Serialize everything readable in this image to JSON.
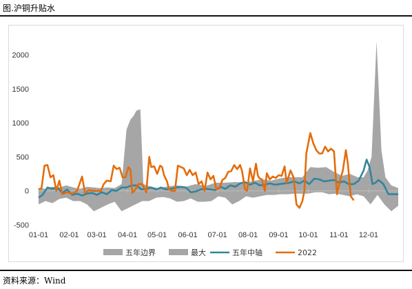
{
  "header": {
    "title": "图.沪铜升贴水"
  },
  "footer": {
    "source": "资料来源：Wind"
  },
  "chart_data": {
    "type": "area",
    "title": "",
    "xlabel": "",
    "ylabel": "",
    "ylim": [
      -500,
      2300
    ],
    "yticks": [
      "2000",
      "1500",
      "1000",
      "500",
      "0",
      "-500"
    ],
    "x_tick_labels": [
      "01-01",
      "02-01",
      "03-01",
      "04-01",
      "05-01",
      "06-01",
      "07-01",
      "08-01",
      "09-01",
      "10-01",
      "11-01",
      "12-01"
    ],
    "legend": [
      "五年边界",
      "最大",
      "五年中轴",
      "2022"
    ],
    "legend_position": "bottom",
    "colors": {
      "band": "#a6a6a6",
      "median": "#31859c",
      "y2022": "#e46c0a",
      "axis": "#bfbfbf"
    },
    "x_unit": "day-of-year",
    "series": [
      {
        "name": "最大",
        "points": [
          [
            1,
            40
          ],
          [
            8,
            30
          ],
          [
            15,
            60
          ],
          [
            22,
            50
          ],
          [
            29,
            80
          ],
          [
            36,
            50
          ],
          [
            43,
            30
          ],
          [
            50,
            60
          ],
          [
            57,
            50
          ],
          [
            64,
            40
          ],
          [
            71,
            50
          ],
          [
            78,
            40
          ],
          [
            85,
            100
          ],
          [
            90,
            900
          ],
          [
            94,
            1050
          ],
          [
            97,
            1100
          ],
          [
            100,
            1180
          ],
          [
            104,
            1200
          ],
          [
            107,
            100
          ],
          [
            115,
            60
          ],
          [
            122,
            40
          ],
          [
            130,
            60
          ],
          [
            140,
            80
          ],
          [
            150,
            60
          ],
          [
            160,
            100
          ],
          [
            170,
            70
          ],
          [
            180,
            120
          ],
          [
            190,
            120
          ],
          [
            200,
            130
          ],
          [
            210,
            120
          ],
          [
            220,
            150
          ],
          [
            228,
            170
          ],
          [
            236,
            150
          ],
          [
            244,
            180
          ],
          [
            252,
            200
          ],
          [
            260,
            200
          ],
          [
            268,
            200
          ],
          [
            276,
            350
          ],
          [
            284,
            340
          ],
          [
            292,
            350
          ],
          [
            300,
            280
          ],
          [
            308,
            220
          ],
          [
            316,
            250
          ],
          [
            324,
            200
          ],
          [
            330,
            200
          ],
          [
            334,
            300
          ],
          [
            338,
            500
          ],
          [
            341,
            1500
          ],
          [
            343,
            2200
          ],
          [
            345,
            1600
          ],
          [
            348,
            600
          ],
          [
            352,
            200
          ],
          [
            358,
            80
          ],
          [
            365,
            40
          ]
        ]
      },
      {
        "name": "五年边界",
        "points": [
          [
            1,
            -200
          ],
          [
            8,
            -150
          ],
          [
            15,
            -180
          ],
          [
            22,
            -120
          ],
          [
            29,
            -100
          ],
          [
            36,
            -150
          ],
          [
            43,
            -150
          ],
          [
            50,
            -200
          ],
          [
            57,
            -300
          ],
          [
            64,
            -250
          ],
          [
            71,
            -200
          ],
          [
            78,
            -160
          ],
          [
            85,
            -300
          ],
          [
            92,
            -250
          ],
          [
            99,
            -200
          ],
          [
            106,
            -150
          ],
          [
            113,
            -150
          ],
          [
            120,
            -100
          ],
          [
            127,
            -90
          ],
          [
            134,
            -110
          ],
          [
            141,
            -160
          ],
          [
            148,
            -150
          ],
          [
            155,
            -110
          ],
          [
            162,
            -160
          ],
          [
            169,
            -160
          ],
          [
            176,
            -150
          ],
          [
            183,
            -80
          ],
          [
            190,
            -100
          ],
          [
            197,
            -200
          ],
          [
            204,
            -150
          ],
          [
            211,
            -80
          ],
          [
            218,
            -100
          ],
          [
            225,
            -80
          ],
          [
            232,
            -60
          ],
          [
            239,
            -60
          ],
          [
            246,
            -50
          ],
          [
            253,
            -50
          ],
          [
            260,
            -40
          ],
          [
            267,
            -40
          ],
          [
            274,
            -40
          ],
          [
            281,
            -20
          ],
          [
            288,
            -20
          ],
          [
            295,
            -50
          ],
          [
            302,
            -40
          ],
          [
            309,
            -60
          ],
          [
            316,
            -80
          ],
          [
            323,
            -50
          ],
          [
            330,
            -80
          ],
          [
            337,
            -200
          ],
          [
            344,
            -60
          ],
          [
            351,
            -200
          ],
          [
            358,
            -300
          ],
          [
            365,
            -220
          ]
        ]
      },
      {
        "name": "五年中轴",
        "points": [
          [
            1,
            -100
          ],
          [
            5,
            -60
          ],
          [
            10,
            50
          ],
          [
            15,
            30
          ],
          [
            20,
            50
          ],
          [
            25,
            -30
          ],
          [
            30,
            20
          ],
          [
            35,
            -60
          ],
          [
            40,
            -40
          ],
          [
            45,
            -70
          ],
          [
            50,
            -40
          ],
          [
            55,
            -30
          ],
          [
            60,
            -60
          ],
          [
            65,
            -20
          ],
          [
            70,
            -50
          ],
          [
            75,
            10
          ],
          [
            80,
            0
          ],
          [
            85,
            50
          ],
          [
            90,
            50
          ],
          [
            95,
            80
          ],
          [
            100,
            80
          ],
          [
            105,
            20
          ],
          [
            110,
            30
          ],
          [
            115,
            50
          ],
          [
            120,
            20
          ],
          [
            125,
            50
          ],
          [
            130,
            20
          ],
          [
            135,
            30
          ],
          [
            140,
            50
          ],
          [
            145,
            60
          ],
          [
            150,
            50
          ],
          [
            155,
            -20
          ],
          [
            160,
            -10
          ],
          [
            165,
            20
          ],
          [
            170,
            30
          ],
          [
            175,
            20
          ],
          [
            180,
            10
          ],
          [
            185,
            60
          ],
          [
            190,
            30
          ],
          [
            195,
            80
          ],
          [
            200,
            60
          ],
          [
            205,
            110
          ],
          [
            210,
            130
          ],
          [
            215,
            90
          ],
          [
            220,
            120
          ],
          [
            225,
            80
          ],
          [
            230,
            90
          ],
          [
            235,
            110
          ],
          [
            240,
            90
          ],
          [
            245,
            100
          ],
          [
            250,
            110
          ],
          [
            255,
            120
          ],
          [
            260,
            140
          ],
          [
            265,
            110
          ],
          [
            270,
            150
          ],
          [
            275,
            100
          ],
          [
            280,
            180
          ],
          [
            285,
            170
          ],
          [
            290,
            140
          ],
          [
            295,
            150
          ],
          [
            300,
            160
          ],
          [
            305,
            120
          ],
          [
            310,
            140
          ],
          [
            315,
            100
          ],
          [
            320,
            100
          ],
          [
            325,
            150
          ],
          [
            330,
            300
          ],
          [
            333,
            460
          ],
          [
            336,
            350
          ],
          [
            339,
            100
          ],
          [
            342,
            120
          ],
          [
            345,
            160
          ],
          [
            350,
            100
          ],
          [
            355,
            -50
          ],
          [
            360,
            -50
          ],
          [
            365,
            -50
          ]
        ]
      },
      {
        "name": "2022",
        "points": [
          [
            1,
            20
          ],
          [
            4,
            40
          ],
          [
            7,
            370
          ],
          [
            10,
            380
          ],
          [
            13,
            200
          ],
          [
            16,
            230
          ],
          [
            19,
            0
          ],
          [
            22,
            150
          ],
          [
            25,
            -50
          ],
          [
            30,
            -20
          ],
          [
            35,
            -40
          ],
          [
            40,
            0
          ],
          [
            45,
            210
          ],
          [
            48,
            -30
          ],
          [
            52,
            10
          ],
          [
            56,
            0
          ],
          [
            60,
            0
          ],
          [
            64,
            0
          ],
          [
            67,
            100
          ],
          [
            70,
            150
          ],
          [
            74,
            140
          ],
          [
            77,
            370
          ],
          [
            80,
            320
          ],
          [
            83,
            340
          ],
          [
            86,
            200
          ],
          [
            89,
            200
          ],
          [
            92,
            350
          ],
          [
            94,
            310
          ],
          [
            96,
            -30
          ],
          [
            99,
            20
          ],
          [
            102,
            100
          ],
          [
            106,
            100
          ],
          [
            110,
            -20
          ],
          [
            113,
            500
          ],
          [
            115,
            350
          ],
          [
            118,
            360
          ],
          [
            121,
            250
          ],
          [
            124,
            370
          ],
          [
            126,
            350
          ],
          [
            128,
            230
          ],
          [
            131,
            140
          ],
          [
            133,
            20
          ],
          [
            136,
            0
          ],
          [
            139,
            0
          ],
          [
            142,
            370
          ],
          [
            145,
            350
          ],
          [
            148,
            330
          ],
          [
            151,
            230
          ],
          [
            154,
            310
          ],
          [
            157,
            230
          ],
          [
            160,
            270
          ],
          [
            163,
            100
          ],
          [
            166,
            140
          ],
          [
            169,
            0
          ],
          [
            172,
            270
          ],
          [
            175,
            170
          ],
          [
            178,
            220
          ],
          [
            181,
            20
          ],
          [
            184,
            40
          ],
          [
            187,
            160
          ],
          [
            190,
            190
          ],
          [
            193,
            280
          ],
          [
            196,
            290
          ],
          [
            199,
            380
          ],
          [
            202,
            320
          ],
          [
            205,
            380
          ],
          [
            207,
            290
          ],
          [
            210,
            20
          ],
          [
            212,
            0
          ],
          [
            215,
            330
          ],
          [
            218,
            140
          ],
          [
            221,
            400
          ],
          [
            223,
            220
          ],
          [
            225,
            180
          ],
          [
            227,
            170
          ],
          [
            230,
            0
          ],
          [
            232,
            260
          ],
          [
            235,
            170
          ],
          [
            238,
            210
          ],
          [
            241,
            190
          ],
          [
            244,
            230
          ],
          [
            247,
            220
          ],
          [
            250,
            360
          ],
          [
            252,
            120
          ],
          [
            256,
            300
          ],
          [
            259,
            200
          ],
          [
            262,
            -200
          ],
          [
            265,
            -250
          ],
          [
            268,
            -150
          ],
          [
            270,
            0
          ],
          [
            272,
            550
          ],
          [
            274,
            700
          ],
          [
            276,
            850
          ],
          [
            279,
            700
          ],
          [
            282,
            600
          ],
          [
            285,
            550
          ],
          [
            288,
            550
          ],
          [
            291,
            650
          ],
          [
            294,
            580
          ],
          [
            297,
            620
          ],
          [
            300,
            580
          ],
          [
            303,
            -50
          ],
          [
            306,
            150
          ],
          [
            309,
            300
          ],
          [
            312,
            600
          ],
          [
            314,
            400
          ],
          [
            317,
            -80
          ],
          [
            320,
            -140
          ]
        ]
      }
    ]
  }
}
